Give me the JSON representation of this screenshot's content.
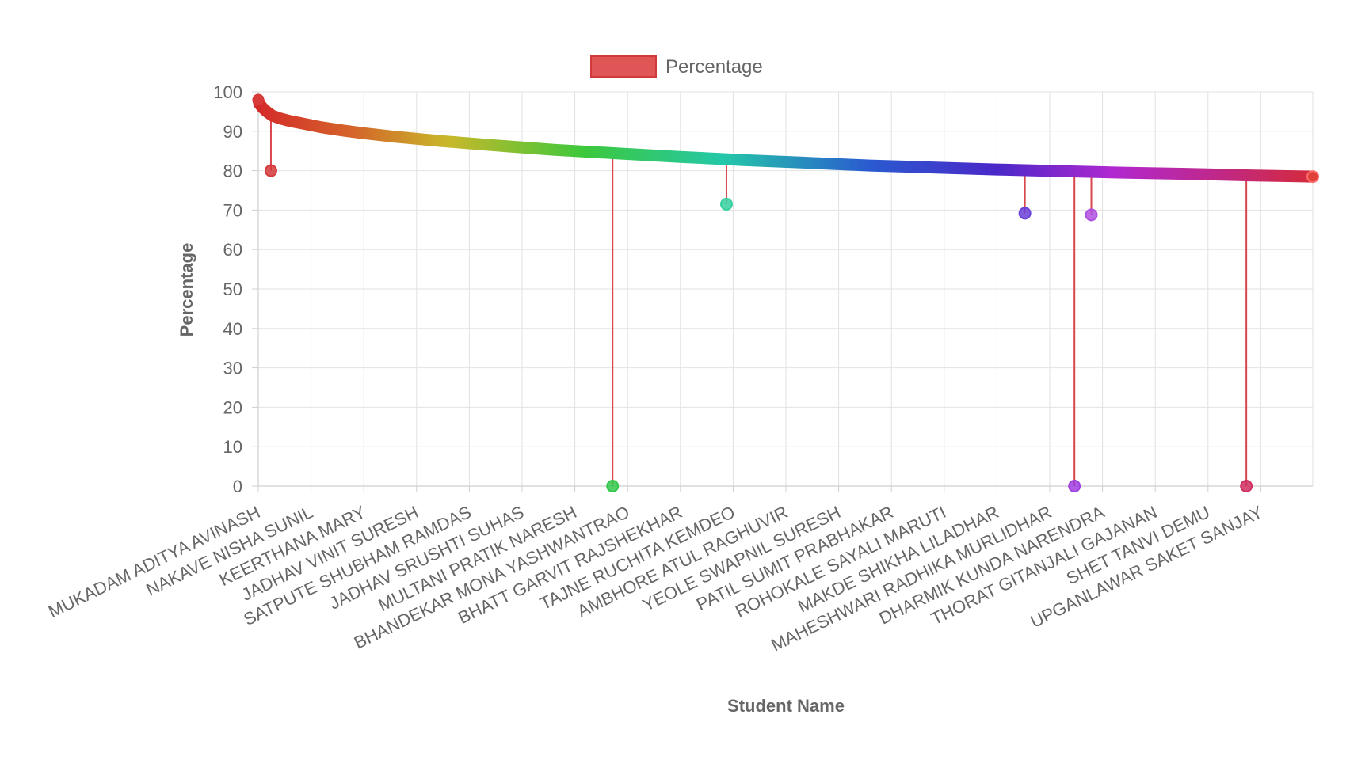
{
  "chart_data": {
    "type": "line",
    "xlabel": "Student Name",
    "ylabel": "Percentage",
    "ylim": [
      0,
      100
    ],
    "y_ticks": [
      0,
      10,
      20,
      30,
      40,
      50,
      60,
      70,
      80,
      90,
      100
    ],
    "grid": true,
    "legend": {
      "position": "top-center",
      "entries": [
        "Percentage"
      ]
    },
    "series": [
      {
        "name": "Percentage",
        "color": "#e05555",
        "trend": {
          "x": [
            0,
            0.001,
            0.004,
            0.008,
            0.013,
            0.02,
            0.03,
            0.045,
            0.06,
            0.08,
            0.1,
            0.13,
            0.17,
            0.22,
            0.28,
            0.34,
            0.4,
            0.46,
            0.52,
            0.58,
            0.64,
            0.7,
            0.76,
            0.82,
            0.88,
            0.94,
            1.0
          ],
          "y": [
            98.0,
            97.0,
            96.0,
            95.0,
            94.0,
            93.3,
            92.6,
            91.8,
            91.0,
            90.2,
            89.5,
            88.6,
            87.6,
            86.5,
            85.3,
            84.4,
            83.5,
            82.7,
            82.0,
            81.3,
            80.8,
            80.3,
            79.9,
            79.5,
            79.2,
            78.8,
            78.5
          ]
        },
        "drops": [
          {
            "x": 0.012,
            "y": 80.0,
            "from": 94.6
          },
          {
            "x": 0.336,
            "y": 0.0,
            "from": 85.3
          },
          {
            "x": 0.444,
            "y": 71.5,
            "from": 83.4
          },
          {
            "x": 0.727,
            "y": 69.2,
            "from": 80.8
          },
          {
            "x": 0.774,
            "y": 0.0,
            "from": 80.6
          },
          {
            "x": 0.79,
            "y": 68.8,
            "from": 80.5
          },
          {
            "x": 0.937,
            "y": 0.0,
            "from": 79.1
          }
        ]
      }
    ],
    "x_tick_labels": [
      "MUKADAM ADITYA AVINASH",
      "NAKAVE NISHA SUNIL",
      "KEERTHANA MARY",
      "JADHAV VINIT SURESH",
      "SATPUTE SHUBHAM RAMDAS",
      "JADHAV SRUSHTI SUHAS",
      "MULTANI PRATIK NARESH",
      "BHANDEKAR MONA YASHWANTRAO",
      "BHATT GARVIT RAJSHEKHAR",
      "TAJNE RUCHITA KEMDEO",
      "AMBHORE ATUL RAGHUVIR",
      "YEOLE SWAPNIL SURESH",
      "PATIL SUMIT PRABHAKAR",
      "ROHOKALE SAYALI MARUTI",
      "MAKDE SHIKHA LILADHAR",
      "MAHESHWARI RADHIKA MURLIDHAR",
      "DHARMIK KUNDA NARENDRA",
      "THORAT GITANJALI GAJANAN",
      "SHET TANVI DEMU",
      "UPGANLAWAR SAKET SANJAY"
    ]
  }
}
